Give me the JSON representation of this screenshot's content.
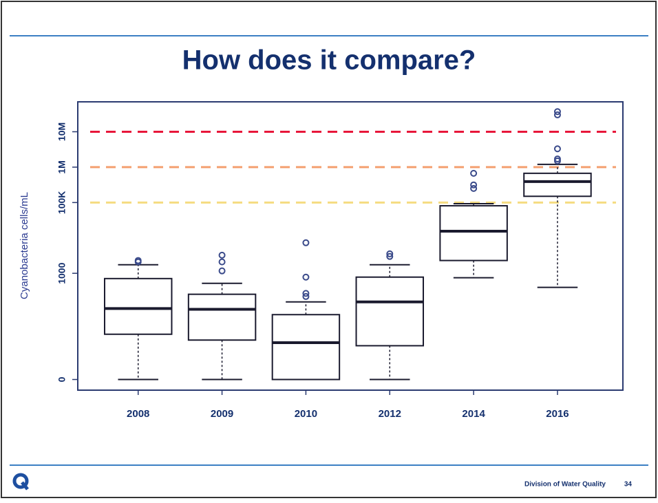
{
  "chart_data": {
    "type": "box",
    "title": "How does it compare?",
    "ylabel": "Cyanobacteria cells/mL",
    "categories": [
      "2008",
      "2009",
      "2010",
      "2012",
      "2014",
      "2016"
    ],
    "whisker_low": [
      0,
      0,
      0,
      0,
      750,
      400
    ],
    "q1": [
      18,
      12,
      0,
      8,
      2300,
      150000
    ],
    "median": [
      100,
      95,
      10,
      155,
      15500,
      390000
    ],
    "q3": [
      710,
      255,
      67,
      780,
      81000,
      670000
    ],
    "whisker_high": [
      1750,
      520,
      155,
      1750,
      93000,
      1200000
    ],
    "outliers": [
      [
        2300,
        2100
      ],
      [
        3250,
        2100,
        1170
      ],
      [
        7300,
        780,
        270,
        220
      ],
      [
        3550,
        3000
      ],
      [
        670000,
        315000,
        250000
      ],
      [
        37000000,
        30000000,
        3300000,
        1700000,
        1500000
      ]
    ],
    "box_color": "#1a1a2e",
    "outlier_color": "#3a4a8a",
    "scale": "log1p",
    "ylim": [
      -0.5,
      70000000
    ],
    "yticks": [
      0,
      1000,
      {
        "value": 100000,
        "label": "100K"
      },
      {
        "value": 1000000,
        "label": "1M"
      },
      {
        "value": 10000000,
        "label": "10M"
      }
    ],
    "hlines": [
      {
        "value": 10000000,
        "color": "#e8163a"
      },
      {
        "value": 1000000,
        "color": "#f4a070"
      },
      {
        "value": 100000,
        "color": "#f5dc80"
      }
    ]
  },
  "footer": {
    "org": "Division of Water Quality",
    "page": 34
  }
}
